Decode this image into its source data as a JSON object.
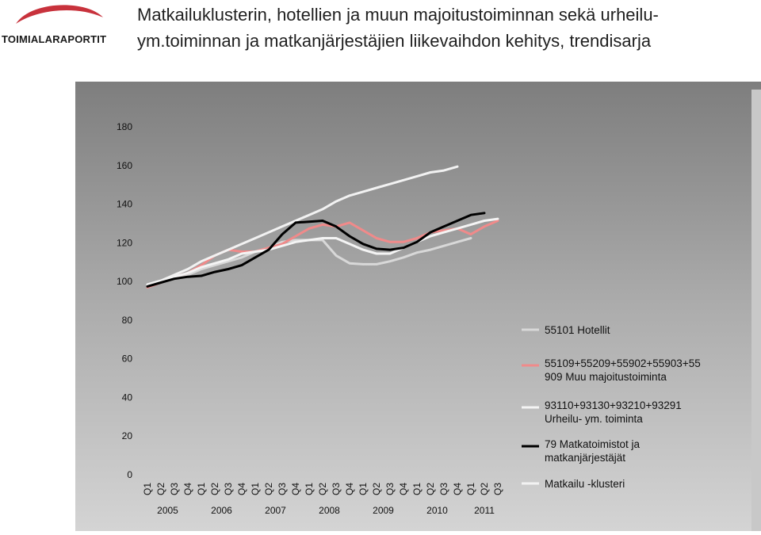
{
  "logo": {
    "text": "TOIMIALARAPORTIT",
    "colors": [
      "#c8323c",
      "#2b4c8c"
    ]
  },
  "title": "Matkailuklusterin, hotellien ja muun majoitustoiminnan sekä urheilu- ym.toiminnan ja matkanjärjestäjien liikevaihdon kehitys, trendisarja",
  "chart_data": {
    "type": "line",
    "title": "Matkailuklusterin, hotellien ja muun majoitustoiminnan sekä urheilu- ym.toiminnan ja matkanjärjestäjien liikevaihdon kehitys, trendisarja",
    "xlabel": "",
    "ylabel": "",
    "ylim": [
      0,
      180
    ],
    "yticks": [
      0,
      20,
      40,
      60,
      80,
      100,
      120,
      140,
      160,
      180
    ],
    "grid": false,
    "legend_position": "right",
    "x": [
      "Q1",
      "Q2",
      "Q3",
      "Q4",
      "Q1",
      "Q2",
      "Q3",
      "Q4",
      "Q1",
      "Q2",
      "Q3",
      "Q4",
      "Q1",
      "Q2",
      "Q3",
      "Q4",
      "Q1",
      "Q2",
      "Q3",
      "Q4",
      "Q1",
      "Q2",
      "Q3",
      "Q4",
      "Q1",
      "Q2",
      "Q3"
    ],
    "years": [
      "2005",
      "2006",
      "2007",
      "2008",
      "2009",
      "2010",
      "2011"
    ],
    "series": [
      {
        "name": "55101 Hotellit",
        "color": "#d8d8d8",
        "values": [
          98,
          99,
          101,
          103,
          106,
          108,
          110,
          112,
          115,
          117,
          120,
          121,
          121,
          121,
          113,
          109,
          108.5,
          108.5,
          110,
          112,
          114.5,
          116,
          118,
          120,
          122,
          null,
          null
        ]
      },
      {
        "name": "55109+55209+55902+55903+55909 Muu majoitustoiminta",
        "color": "#f08a8a",
        "values": [
          96.5,
          99,
          102,
          104,
          108,
          113,
          116,
          115,
          115,
          117,
          119,
          123,
          127,
          129,
          128,
          130,
          126,
          122,
          120,
          120,
          122,
          125,
          126,
          127,
          124,
          128,
          131
        ]
      },
      {
        "name": "93110+93130+93210+93291 Urheilu- ym. toiminta",
        "color": "#f4f4f4",
        "values": [
          98,
          100,
          102,
          104,
          107,
          109,
          111,
          114,
          115,
          116,
          118,
          120,
          121,
          122,
          122,
          119,
          116,
          114,
          114,
          117,
          120,
          123,
          125,
          127,
          129,
          131,
          132
        ]
      },
      {
        "name": "79 Matkatoimistot ja matkanjärjestäjät",
        "color": "#000000",
        "values": [
          97,
          99,
          101,
          102,
          102.5,
          104.5,
          106,
          108,
          112,
          116,
          124,
          130,
          130.5,
          131,
          128,
          123,
          119,
          116.5,
          116,
          117,
          120,
          125,
          128,
          131,
          134,
          135,
          null
        ]
      },
      {
        "name": "Matkailu -klusteri",
        "color": "#f2f2f2",
        "values": [
          98,
          100,
          103,
          106,
          110,
          113,
          116,
          119,
          122,
          125,
          128,
          131,
          134,
          137,
          141,
          144,
          146,
          148,
          150,
          152,
          154,
          156,
          157,
          159,
          null,
          null,
          null
        ]
      }
    ]
  }
}
